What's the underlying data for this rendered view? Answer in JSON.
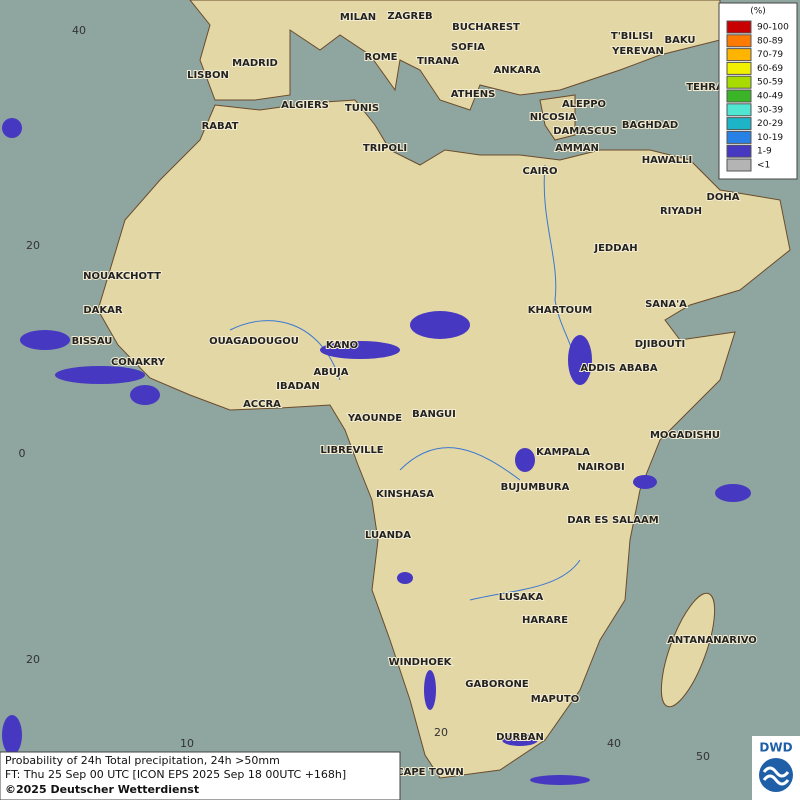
{
  "map": {
    "cities": [
      "MILAN",
      "ZAGREB",
      "BUCHAREST",
      "MADRID",
      "ROME",
      "SOFIA",
      "TIRANA",
      "ANKARA",
      "T'BILISI",
      "BAKU",
      "YEREVAN",
      "LISBON",
      "ATHENS",
      "TEHRA",
      "ALGIERS",
      "TUNIS",
      "ALEPPO",
      "RABAT",
      "NICOSIA",
      "BAGHDAD",
      "DAMASCUS",
      "TRIPOLI",
      "AMMAN",
      "HAWALLI",
      "CAIRO",
      "DOHA",
      "RIYADH",
      "JEDDAH",
      "NOUAKCHOTT",
      "SANA'A",
      "DAKAR",
      "KHARTOUM",
      "BISSAU",
      "OUAGADOUGOU",
      "DJIBOUTI",
      "CONAKRY",
      "KANO",
      "ABUJA",
      "ADDIS ABABA",
      "IBADAN",
      "ACCRA",
      "YAOUNDE",
      "BANGUI",
      "MOGADISHU",
      "KAMPALA",
      "LIBREVILLE",
      "NAIROBI",
      "BUJUMBURA",
      "KINSHASA",
      "DAR ES SALAAM",
      "LUANDA",
      "LUSAKA",
      "HARARE",
      "ANTANANARIVO",
      "WINDHOEK",
      "GABORONE",
      "MAPUTO",
      "DURBAN",
      "CAPE TOWN"
    ],
    "lat_labels": [
      40,
      20,
      0,
      20
    ],
    "lon_labels": [
      10,
      20,
      40,
      50
    ],
    "legend": {
      "title": "(%)",
      "items": [
        {
          "label": "90-100",
          "color": "#c80000"
        },
        {
          "label": "80-89",
          "color": "#ff7a00"
        },
        {
          "label": "70-79",
          "color": "#ffb400"
        },
        {
          "label": "60-69",
          "color": "#f0f000"
        },
        {
          "label": "50-59",
          "color": "#a8dc00"
        },
        {
          "label": "40-49",
          "color": "#3cb428"
        },
        {
          "label": "30-39",
          "color": "#50e6d2"
        },
        {
          "label": "20-29",
          "color": "#1eb4c8"
        },
        {
          "label": "10-19",
          "color": "#2882e6"
        },
        {
          "label": "1-9",
          "color": "#4638c0"
        },
        {
          "label": "<1",
          "color": "#b4b4b4"
        }
      ]
    },
    "caption": [
      "Probability of 24h Total precipitation, 24h >50mm",
      "FT: Thu 25 Sep 00 UTC [ICON EPS 2025 Sep 18 00UTC +168h]",
      "©2025 Deutscher Wetterdienst"
    ],
    "logo": "DWD"
  }
}
